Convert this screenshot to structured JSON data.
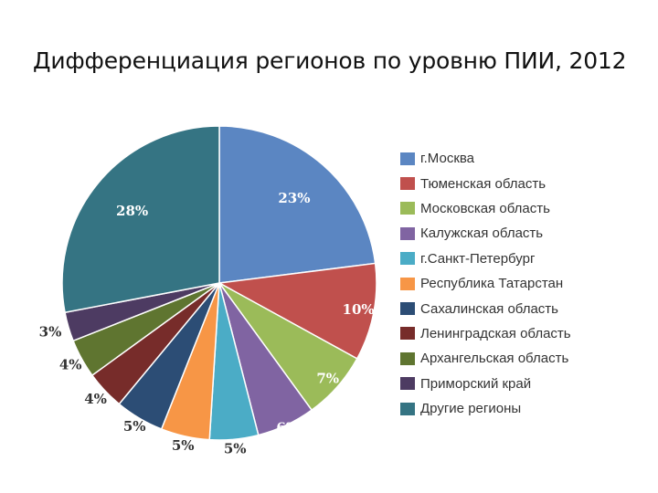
{
  "chart_data": {
    "type": "pie",
    "title": "Дифференциация регионов по уровню ПИИ, 2012",
    "slices": [
      {
        "name": "г.Москва",
        "value": 23,
        "label": "23%",
        "color": "#5b86c2"
      },
      {
        "name": "Тюменская область",
        "value": 10,
        "label": "10%",
        "color": "#c0504d"
      },
      {
        "name": "Московская область",
        "value": 7,
        "label": "7%",
        "color": "#9bbb59"
      },
      {
        "name": "Калужская область",
        "value": 6,
        "label": "6%",
        "color": "#8064a2"
      },
      {
        "name": "г.Санкт-Петербург",
        "value": 5,
        "label": "5%",
        "color": "#4bacc6"
      },
      {
        "name": "Республика Татарстан",
        "value": 5,
        "label": "5%",
        "color": "#f79646"
      },
      {
        "name": "Сахалинская область",
        "value": 5,
        "label": "5%",
        "color": "#2c4d75"
      },
      {
        "name": "Ленинградская область",
        "value": 4,
        "label": "4%",
        "color": "#772c2a"
      },
      {
        "name": "Архангельская область",
        "value": 4,
        "label": "4%",
        "color": "#5f7530"
      },
      {
        "name": "Приморский край",
        "value": 3,
        "label": "3%",
        "color": "#4d3b62"
      },
      {
        "name": "Другие регионы",
        "value": 28,
        "label": "28%",
        "color": "#357483"
      }
    ],
    "legend_position": "right",
    "start_angle_deg": 0,
    "direction": "clockwise"
  }
}
